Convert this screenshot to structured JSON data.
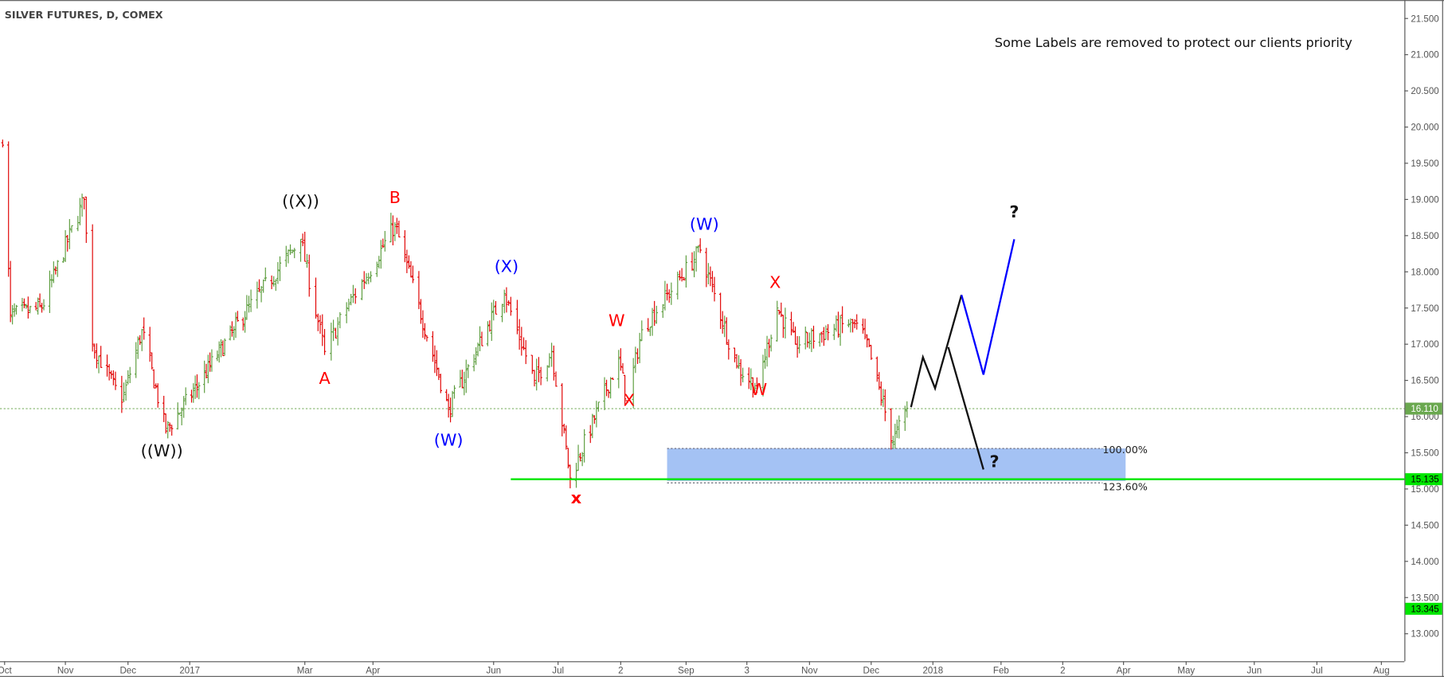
{
  "title": "SILVER FUTURES, D, COMEX",
  "note": "Some Labels are removed to protect our clients priority",
  "colors": {
    "up": "#5b9c3c",
    "down": "#e10000",
    "blue_wave": "#0000ff",
    "red_wave": "#ff0000",
    "black_wave": "#111111",
    "target_box": "#a4c2f4",
    "support_line": "#00e600",
    "last_price_badge": "#6aa84f"
  },
  "chart_data": {
    "type": "ohlc-bar",
    "ylim": [
      12.6,
      21.6
    ],
    "y_ticks": [
      "21.500",
      "21.000",
      "20.500",
      "20.000",
      "19.500",
      "19.000",
      "18.500",
      "18.000",
      "17.500",
      "17.000",
      "16.500",
      "16.000",
      "15.500",
      "15.000",
      "14.500",
      "14.000",
      "13.500",
      "13.000"
    ],
    "x_ticks": [
      "Oct",
      "Nov",
      "Dec",
      "2017",
      "Mar",
      "Apr",
      "Jun",
      "Jul",
      "2",
      "Sep",
      "3",
      "Nov",
      "Dec",
      "2018",
      "Feb",
      "2",
      "Apr",
      "May",
      "Jun",
      "Jul",
      "Aug"
    ],
    "price_swings": [
      {
        "date": "2016-09-30",
        "price": 19.75
      },
      {
        "date": "2016-10-04",
        "price": 17.4
      },
      {
        "date": "2016-10-20",
        "price": 17.5
      },
      {
        "date": "2016-11-10",
        "price": 19.0
      },
      {
        "date": "2016-11-14",
        "price": 17.0
      },
      {
        "date": "2016-11-28",
        "price": 16.2
      },
      {
        "date": "2016-12-08",
        "price": 17.2
      },
      {
        "date": "2016-12-20",
        "price": 15.8
      },
      {
        "date": "2017-01-25",
        "price": 17.2
      },
      {
        "date": "2017-02-27",
        "price": 18.45
      },
      {
        "date": "2017-03-10",
        "price": 16.9
      },
      {
        "date": "2017-03-20",
        "price": 17.5
      },
      {
        "date": "2017-04-12",
        "price": 18.65
      },
      {
        "date": "2017-05-09",
        "price": 16.1
      },
      {
        "date": "2017-06-06",
        "price": 17.7
      },
      {
        "date": "2017-06-20",
        "price": 16.5
      },
      {
        "date": "2017-06-28",
        "price": 16.9
      },
      {
        "date": "2017-07-07",
        "price": 15.15
      },
      {
        "date": "2017-07-31",
        "price": 16.8
      },
      {
        "date": "2017-08-04",
        "price": 16.2
      },
      {
        "date": "2017-08-11",
        "price": 17.2
      },
      {
        "date": "2017-09-08",
        "price": 18.3
      },
      {
        "date": "2017-09-26",
        "price": 16.7
      },
      {
        "date": "2017-10-06",
        "price": 16.4
      },
      {
        "date": "2017-10-16",
        "price": 17.5
      },
      {
        "date": "2017-10-25",
        "price": 17.0
      },
      {
        "date": "2017-11-21",
        "price": 17.3
      },
      {
        "date": "2017-11-28",
        "price": 17.1
      },
      {
        "date": "2017-12-12",
        "price": 15.65
      },
      {
        "date": "2017-12-19",
        "price": 16.11
      }
    ],
    "last_price": "16.110",
    "support_level": "15.135",
    "low_marker": "13.345",
    "target_zone": {
      "from": "2017-08-23",
      "to": "2018-04-02",
      "top": 15.56,
      "bottom": 15.11,
      "top_label": "100.00%",
      "bottom_label": "123.60%"
    },
    "support_line_start": "2017-06-09",
    "wave_labels": [
      {
        "text": "((W))",
        "color": "black",
        "date": "2016-12-18",
        "price": 15.45
      },
      {
        "text": "((X))",
        "color": "black",
        "date": "2017-02-27",
        "price": 18.9
      },
      {
        "text": "A",
        "color": "red",
        "date": "2017-03-10",
        "price": 16.45
      },
      {
        "text": "B",
        "color": "red",
        "date": "2017-04-12",
        "price": 18.95
      },
      {
        "text": "(W)",
        "color": "blue",
        "date": "2017-05-09",
        "price": 15.6
      },
      {
        "text": "(X)",
        "color": "blue",
        "date": "2017-06-07",
        "price": 18.0
      },
      {
        "text": "x",
        "color": "red",
        "date": "2017-07-10",
        "price": 14.8
      },
      {
        "text": "W",
        "color": "red",
        "date": "2017-07-30",
        "price": 17.25
      },
      {
        "text": "X",
        "color": "red",
        "date": "2017-08-05",
        "price": 16.15
      },
      {
        "text": "(W)",
        "color": "blue",
        "date": "2017-09-10",
        "price": 18.58
      },
      {
        "text": "X",
        "color": "red",
        "date": "2017-10-15",
        "price": 17.78
      },
      {
        "text": "W",
        "color": "red",
        "date": "2017-10-07",
        "price": 16.3
      },
      {
        "text": "?",
        "color": "black",
        "date": "2018-02-07",
        "price": 18.75
      },
      {
        "text": "?",
        "color": "black",
        "date": "2018-01-29",
        "price": 15.3
      }
    ],
    "projection_black": [
      [
        {
          "date": "2017-12-21",
          "price": 16.13
        },
        {
          "date": "2017-12-27",
          "price": 16.82
        },
        {
          "date": "2018-01-02",
          "price": 16.39
        },
        {
          "date": "2018-01-14",
          "price": 17.68
        }
      ],
      [
        {
          "date": "2018-01-08",
          "price": 16.96
        },
        {
          "date": "2018-01-24",
          "price": 15.27
        }
      ]
    ],
    "projection_blue": [
      {
        "date": "2018-01-14",
        "price": 17.68
      },
      {
        "date": "2018-01-24",
        "price": 16.58
      },
      {
        "date": "2018-02-07",
        "price": 18.45
      }
    ]
  }
}
